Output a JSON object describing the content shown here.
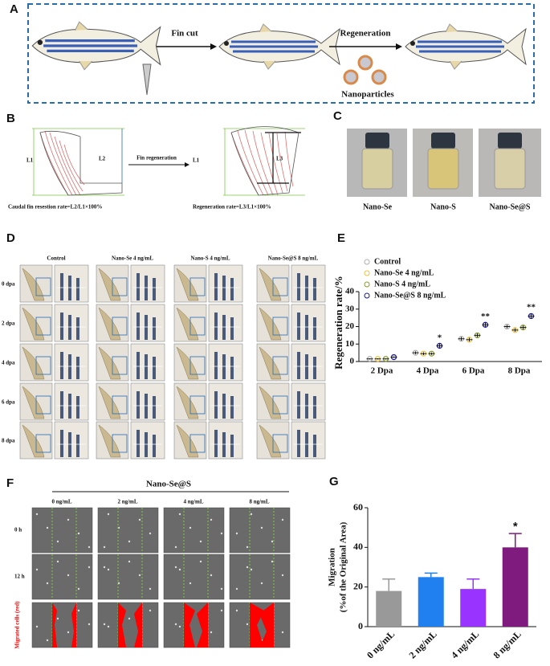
{
  "panel_a": {
    "label": "A",
    "fin_cut": "Fin cut",
    "regeneration": "Regeneration",
    "nanoparticles": "Nanoparticles"
  },
  "panel_b": {
    "label": "B",
    "l1_left": "L1",
    "l2": "L2",
    "arrow": "Fin regeneration",
    "l1_right": "L1",
    "l3": "L3",
    "left_formula": "Caudal fin resestion rate=L2/L1×100%",
    "right_formula": "Regeneration rate=L3/L1×100%"
  },
  "panel_c": {
    "label": "C",
    "vials": [
      "Nano-Se",
      "Nano-S",
      "Nano-Se@S"
    ]
  },
  "panel_d": {
    "label": "D",
    "columns": [
      "Control",
      "Nano-Se 4 ng/mL",
      "Nano-S 4 ng/mL",
      "Nano-Se@S 8 ng/mL"
    ],
    "rows": [
      "0 dpa",
      "2 dpa",
      "4 dpa",
      "6 dpa",
      "8 dpa"
    ]
  },
  "panel_f": {
    "label": "F",
    "group": "Nano-Se@S",
    "columns": [
      "0 ng/mL",
      "2 ng/mL",
      "4 ng/mL",
      "8 ng/mL"
    ],
    "rows": [
      "0 h",
      "12 h",
      "Migrated cells (red)"
    ]
  },
  "chart_data": [
    {
      "type": "dot",
      "label": "E",
      "ylabel": "Regeneration rate/%",
      "categories": [
        "2 Dpa",
        "4 Dpa",
        "6 Dpa",
        "8 Dpa"
      ],
      "ylim": [
        0,
        40
      ],
      "yticks": [
        0,
        10,
        20,
        30,
        40
      ],
      "series": [
        {
          "name": "Control",
          "color": "#b0b0b0",
          "values": [
            1.5,
            5,
            13,
            20
          ],
          "errors": [
            0.3,
            0.8,
            1.5,
            1
          ]
        },
        {
          "name": "Nano-Se 4 ng/mL",
          "color": "#f0c040",
          "values": [
            1.5,
            4.5,
            12.5,
            18
          ],
          "errors": [
            0.3,
            0.8,
            1.2,
            1
          ]
        },
        {
          "name": "Nano-S 4 ng/mL",
          "color": "#8a9a30",
          "values": [
            1.5,
            4.5,
            15,
            19.5
          ],
          "errors": [
            0.3,
            0.7,
            1.2,
            1.5
          ]
        },
        {
          "name": "Nano-Se@S 8 ng/mL",
          "color": "#1a1a8c",
          "values": [
            2.5,
            9,
            21,
            26
          ],
          "errors": [
            0.4,
            1.2,
            1.2,
            1.5
          ],
          "significance": [
            null,
            "*",
            "**",
            "**"
          ]
        }
      ]
    },
    {
      "type": "bar",
      "label": "G",
      "ylabel": [
        "Migration",
        "(%of the Original Area)"
      ],
      "categories": [
        "0 ng/mL",
        "2 ng/mL",
        "4 ng/mL",
        "8 ng/mL"
      ],
      "ylim": [
        0,
        60
      ],
      "yticks": [
        0,
        20,
        40,
        60
      ],
      "values": [
        18,
        25,
        19,
        40
      ],
      "errors": [
        6,
        2,
        5,
        7
      ],
      "colors": [
        "#999999",
        "#2080f0",
        "#9933ff",
        "#7f1a7f"
      ],
      "significance": [
        null,
        null,
        null,
        "*"
      ]
    }
  ]
}
